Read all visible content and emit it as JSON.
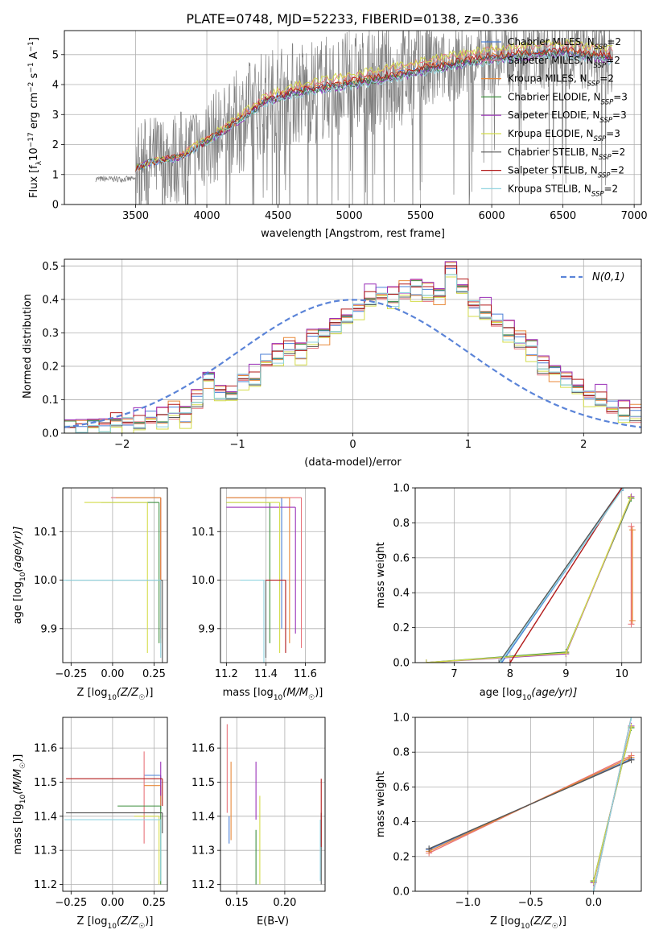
{
  "figure_title": "PLATE=0748, MJD=52233, FIBERID=0138, z=0.336",
  "models": [
    {
      "name": "Chabrier MILES, N",
      "sub": "SSP",
      "tail": "=2",
      "color": "#4a7fd6"
    },
    {
      "name": "Salpeter MILES, N",
      "sub": "SSP",
      "tail": "=2",
      "color": "#e8747c"
    },
    {
      "name": "Kroupa MILES, N",
      "sub": "SSP",
      "tail": "=2",
      "color": "#e8893a"
    },
    {
      "name": "Chabrier ELODIE, N",
      "sub": "SSP",
      "tail": "=3",
      "color": "#3f8f3f"
    },
    {
      "name": "Salpeter ELODIE, N",
      "sub": "SSP",
      "tail": "=3",
      "color": "#9a2fb8"
    },
    {
      "name": "Kroupa ELODIE, N",
      "sub": "SSP",
      "tail": "=3",
      "color": "#d4dc4a"
    },
    {
      "name": "Chabrier STELIB, N",
      "sub": "SSP",
      "tail": "=2",
      "color": "#555555"
    },
    {
      "name": "Salpeter STELIB, N",
      "sub": "SSP",
      "tail": "=2",
      "color": "#b21a1a"
    },
    {
      "name": "Kroupa STELIB, N",
      "sub": "SSP",
      "tail": "=2",
      "color": "#8fd3e0"
    }
  ],
  "chart_data": [
    {
      "id": "spectrum",
      "type": "line",
      "title": "PLATE=0748, MJD=52233, FIBERID=0138, z=0.336",
      "xlabel": "wavelength [Angstrom, rest frame]",
      "ylabel_parts": [
        "Flux [f",
        "λ",
        "10",
        "−17",
        " erg cm",
        "−2",
        " s",
        "−1",
        " A",
        "−1",
        "]"
      ],
      "xlim": [
        3000,
        7050
      ],
      "ylim": [
        0,
        5.8
      ],
      "xticks": [
        3500,
        4000,
        4500,
        5000,
        5500,
        6000,
        6500,
        7000
      ],
      "yticks": [
        0,
        1,
        2,
        3,
        4,
        5
      ],
      "data_color": "#7f7f7f",
      "data_range": [
        3220,
        6850
      ],
      "model_anchor_x": [
        3500,
        3600,
        3800,
        4000,
        4200,
        4400,
        4600,
        4800,
        5000,
        5200,
        5400,
        5600,
        5800,
        6000,
        6200,
        6500,
        6850
      ],
      "model_anchor_y": [
        1.2,
        1.4,
        1.55,
        2.1,
        2.7,
        3.4,
        3.7,
        3.85,
        4.0,
        4.15,
        4.35,
        4.55,
        4.7,
        4.85,
        4.95,
        5.05,
        4.85
      ],
      "model_offsets": [
        0.05,
        0.3,
        0.08,
        0.0,
        -0.05,
        0.35,
        0.0,
        0.1,
        -0.08
      ],
      "pre_range_y": 0.85
    },
    {
      "id": "residuals",
      "type": "step",
      "xlabel": "(data-model)/error",
      "ylabel": "Normed distribution",
      "xlim": [
        -2.5,
        2.5
      ],
      "ylim": [
        0,
        0.52
      ],
      "xticks": [
        -2,
        -1,
        0,
        1,
        2
      ],
      "yticks": [
        0.0,
        0.1,
        0.2,
        0.3,
        0.4,
        0.5
      ],
      "reference": {
        "label": "N(0,1)",
        "mean": 0,
        "sigma": 1,
        "color": "#5b84d8"
      },
      "bin_start": -2.5,
      "bin_width": 0.1,
      "base_hist": [
        0.01,
        0.01,
        0.02,
        0.02,
        0.03,
        0.03,
        0.03,
        0.04,
        0.04,
        0.06,
        0.05,
        0.1,
        0.16,
        0.12,
        0.11,
        0.16,
        0.16,
        0.21,
        0.23,
        0.25,
        0.24,
        0.28,
        0.29,
        0.32,
        0.34,
        0.37,
        0.4,
        0.41,
        0.4,
        0.42,
        0.43,
        0.42,
        0.41,
        0.49,
        0.43,
        0.38,
        0.36,
        0.33,
        0.3,
        0.27,
        0.25,
        0.2,
        0.18,
        0.16,
        0.13,
        0.11,
        0.1,
        0.07,
        0.06,
        0.05
      ]
    },
    {
      "id": "age-vs-Z",
      "type": "errorbar",
      "xlabel_parts": [
        "Z [log",
        "10",
        "(Z/Z",
        "☉",
        ")]"
      ],
      "ylabel_parts": [
        "age  [log",
        "10",
        "(age/yr)]"
      ],
      "xlim": [
        -0.3,
        0.33
      ],
      "ylim": [
        9.83,
        10.19
      ],
      "xticks": [
        -0.25,
        0.0,
        0.25
      ],
      "yticks": [
        9.9,
        10.0,
        10.1
      ],
      "xs": [
        0.29,
        0.29,
        0.29,
        0.28,
        0.2,
        0.21,
        0.3,
        0.19,
        0.29
      ],
      "ys": [
        10.17,
        10.17,
        10.17,
        10.16,
        10.0,
        10.16,
        10.0,
        10.0,
        10.0
      ],
      "xerr_lo": [
        0.28,
        0.3,
        0.27,
        0.35,
        0.0,
        0.38,
        0.58,
        0.0,
        0.59
      ],
      "yerr_lo": [
        0.27,
        0.29,
        0.3,
        0.29,
        0.0,
        0.31,
        0.17,
        0.0,
        0.16
      ]
    },
    {
      "id": "age-vs-mass",
      "type": "errorbar",
      "xlabel_parts": [
        "mass [log",
        "10",
        "(M/M",
        "☉",
        ")]"
      ],
      "xlim": [
        11.17,
        11.7
      ],
      "ylim": [
        9.83,
        10.19
      ],
      "xticks": [
        11.2,
        11.4,
        11.6
      ],
      "yticks": [
        9.9,
        10.0,
        10.1
      ],
      "xs": [
        11.48,
        11.58,
        11.52,
        11.42,
        11.55,
        11.47,
        11.4,
        11.5,
        11.39
      ],
      "ys": [
        10.17,
        10.17,
        10.17,
        10.16,
        10.15,
        10.16,
        10.0,
        10.0,
        10.0
      ],
      "xerr_lo": [
        0.27,
        0.38,
        0.32,
        0.22,
        0.35,
        0.27,
        0.0,
        0.1,
        0.12
      ],
      "yerr_lo": [
        0.27,
        0.31,
        0.3,
        0.29,
        0.26,
        0.31,
        0.16,
        0.15,
        0.17
      ]
    },
    {
      "id": "massweight-vs-age",
      "type": "line",
      "xlabel_parts": [
        "age  [log",
        "10",
        "(age/yr)]"
      ],
      "ylabel": "mass weight",
      "xlim": [
        6.3,
        10.35
      ],
      "ylim": [
        0,
        1.0
      ],
      "xticks": [
        7,
        8,
        9,
        10
      ],
      "yticks": [
        0.0,
        0.2,
        0.4,
        0.6,
        0.8,
        1.0
      ],
      "series": [
        {
          "x": [
            7.85,
            10.02
          ],
          "y": [
            0.0,
            1.0
          ]
        },
        {
          "x": [
            10.17,
            10.17
          ],
          "y": [
            0.22,
            0.78
          ]
        },
        {
          "x": [
            10.19,
            10.19
          ],
          "y": [
            0.24,
            0.76
          ]
        },
        {
          "x": [
            6.5,
            9.0,
            10.17
          ],
          "y": [
            0.0,
            0.06,
            0.94
          ]
        },
        {
          "x": [
            6.5,
            9.0,
            10.17
          ],
          "y": [
            0.0,
            0.05,
            0.95
          ]
        },
        {
          "x": [
            6.5,
            9.0,
            10.16
          ],
          "y": [
            0.0,
            0.055,
            0.945
          ]
        },
        {
          "x": [
            7.8,
            10.0
          ],
          "y": [
            0.0,
            1.0
          ]
        },
        {
          "x": [
            8.0,
            10.0
          ],
          "y": [
            0.0,
            1.0
          ]
        },
        {
          "x": [
            7.82,
            10.03
          ],
          "y": [
            0.0,
            1.0
          ]
        }
      ]
    },
    {
      "id": "mass-vs-Z",
      "type": "errorbar",
      "xlabel_parts": [
        "Z [log",
        "10",
        "(Z/Z",
        "☉",
        ")]"
      ],
      "ylabel_parts": [
        "mass [log",
        "10",
        "(M/M",
        "☉",
        ")]"
      ],
      "xlim": [
        -0.3,
        0.33
      ],
      "ylim": [
        11.18,
        11.69
      ],
      "xticks": [
        -0.25,
        0.0,
        0.25
      ],
      "yticks": [
        11.2,
        11.3,
        11.4,
        11.5,
        11.6
      ],
      "xs": [
        0.29,
        0.19,
        0.29,
        0.29,
        0.29,
        0.28,
        0.3,
        0.3,
        0.29
      ],
      "ys": [
        11.52,
        11.59,
        11.49,
        11.43,
        11.56,
        11.4,
        11.41,
        11.51,
        11.39
      ],
      "xerr_lo": [
        0.1,
        0.0,
        0.1,
        0.26,
        0.0,
        0.15,
        0.58,
        0.58,
        0.58
      ],
      "yerr_lo": [
        0.1,
        0.27,
        0.06,
        0.23,
        0.1,
        0.2,
        0.06,
        0.08,
        0.18
      ]
    },
    {
      "id": "mass-vs-ebv",
      "type": "errorbar",
      "xlabel": "E(B-V)",
      "xlim": [
        0.133,
        0.242
      ],
      "ylim": [
        11.18,
        11.69
      ],
      "xticks": [
        0.15,
        0.2
      ],
      "yticks": [
        11.2,
        11.3,
        11.4,
        11.5,
        11.6
      ],
      "xs": [
        0.142,
        0.14,
        0.144,
        0.17,
        0.17,
        0.174,
        0.238,
        0.238,
        0.237
      ],
      "ys": [
        11.4,
        11.67,
        11.56,
        11.36,
        11.56,
        11.46,
        11.41,
        11.51,
        11.39
      ],
      "yerr_lo": [
        0.08,
        0.26,
        0.23,
        0.16,
        0.17,
        0.26,
        0.21,
        0.2,
        0.18
      ]
    },
    {
      "id": "massweight-vs-Z",
      "type": "line",
      "xlabel_parts": [
        "Z [log",
        "10",
        "(Z/Z",
        "☉",
        ")]"
      ],
      "ylabel": "mass weight",
      "xlim": [
        -1.42,
        0.38
      ],
      "ylim": [
        0,
        1.0
      ],
      "xticks": [
        -1.0,
        -0.5,
        0.0
      ],
      "yticks": [
        0.0,
        0.2,
        0.4,
        0.6,
        0.8,
        1.0
      ],
      "series": [
        {
          "x": [
            -1.31,
            0.3
          ],
          "y": [
            0.24,
            0.76
          ]
        },
        {
          "x": [
            -1.31,
            0.3
          ],
          "y": [
            0.22,
            0.78
          ]
        },
        {
          "x": [
            -1.31,
            0.3
          ],
          "y": [
            0.23,
            0.77
          ]
        },
        {
          "x": [
            0.0,
            0.3
          ],
          "y": [
            0.06,
            0.94
          ]
        },
        {
          "x": [
            0.0,
            0.3
          ],
          "y": [
            0.05,
            0.95
          ]
        },
        {
          "x": [
            0.0,
            0.3
          ],
          "y": [
            0.055,
            0.945
          ]
        },
        {
          "x": [
            -1.31,
            0.3
          ],
          "y": [
            0.245,
            0.755
          ]
        },
        {
          "x": [
            0.0,
            0.3
          ],
          "y": [
            0.0,
            1.0
          ]
        },
        {
          "x": [
            0.0,
            0.3
          ],
          "y": [
            0.0,
            1.0
          ]
        }
      ]
    }
  ]
}
